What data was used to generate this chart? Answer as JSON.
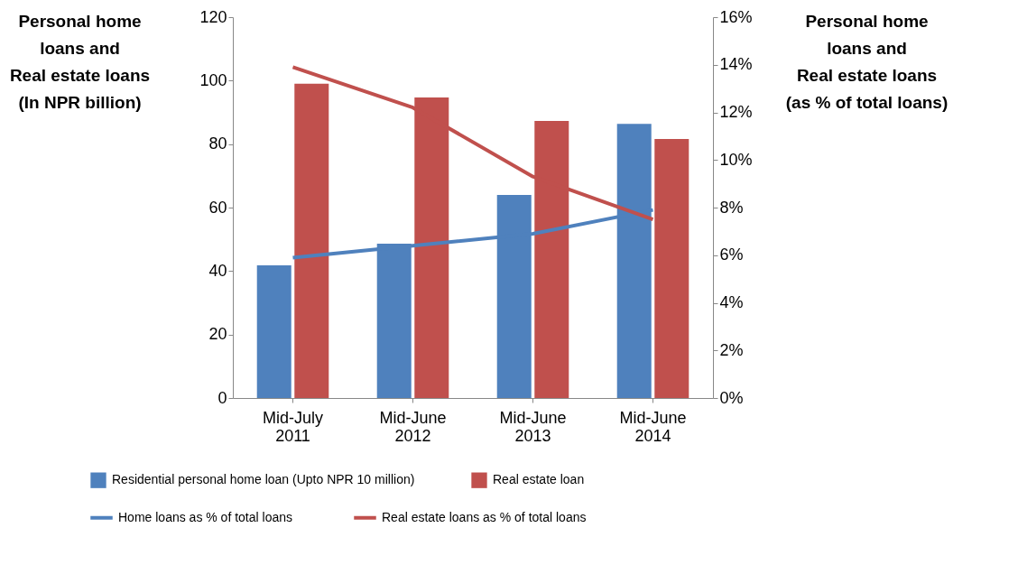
{
  "chart_data": {
    "type": "bar",
    "categories": [
      "Mid-July 2011",
      "Mid-June 2012",
      "Mid-June 2013",
      "Mid-June 2014"
    ],
    "ylabel": "Personal home\nloans and\nReal estate loans\n(In NPR billion)",
    "y2label": "Personal home\nloans and\nReal estate loans\n(as % of total loans)",
    "series": [
      {
        "name": "Residential personal home loan (Upto NPR 10 million)",
        "color": "#4f81bd",
        "values": [
          41.8,
          48.6,
          64,
          86.4
        ]
      },
      {
        "name": "Real estate loan",
        "color": "#c0504d",
        "values": [
          99,
          94.7,
          87.3,
          81.6
        ]
      },
      {
        "name": "Home loans as % of total loans",
        "type": "line",
        "axis": "y2",
        "color": "#4f81bd",
        "values": [
          5.9,
          6.4,
          6.9,
          7.9
        ]
      },
      {
        "name": "Real estate loans as % of total loans",
        "type": "line",
        "axis": "y2",
        "color": "#c0504d",
        "values": [
          13.9,
          12.2,
          9.3,
          7.5
        ]
      }
    ],
    "ylim": [
      0,
      120
    ],
    "yticks": [
      0,
      20,
      40,
      60,
      80,
      100,
      120
    ],
    "y2lim": [
      0,
      16
    ],
    "y2ticks": [
      {
        "value": 0,
        "label": "0%"
      },
      {
        "value": 2,
        "label": "2%"
      },
      {
        "value": 4,
        "label": "4%"
      },
      {
        "value": 6,
        "label": "6%"
      },
      {
        "value": 8,
        "label": "8%"
      },
      {
        "value": 10,
        "label": "10%"
      },
      {
        "value": 12,
        "label": "12%"
      },
      {
        "value": 14,
        "label": "14%"
      },
      {
        "value": 16,
        "label": "16%"
      }
    ],
    "grid": false,
    "legend": "bottom",
    "marker": "none",
    "line_style": "solid"
  }
}
